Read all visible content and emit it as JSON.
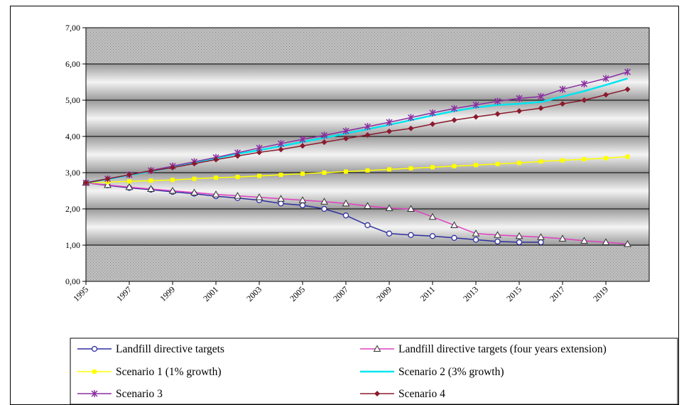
{
  "chart_data": {
    "type": "line",
    "title": "",
    "xlabel": "",
    "ylabel": "",
    "ylim": [
      0,
      7
    ],
    "y_ticks": [
      "0,00",
      "1,00",
      "2,00",
      "3,00",
      "4,00",
      "5,00",
      "6,00",
      "7,00"
    ],
    "x_ticks": [
      "1995",
      "1997",
      "1999",
      "2001",
      "2003",
      "2005",
      "2007",
      "2009",
      "2011",
      "2013",
      "2015",
      "2017",
      "2019"
    ],
    "x_range": [
      1995,
      2021
    ],
    "grid": true,
    "legend_position": "bottom",
    "series": [
      {
        "name": "Landfill directive targets",
        "color": "#2f2fa0",
        "marker": "circle",
        "x": [
          1995,
          1996,
          1997,
          1998,
          1999,
          2000,
          2001,
          2002,
          2003,
          2004,
          2005,
          2006,
          2007,
          2008,
          2009,
          2010,
          2011,
          2012,
          2013,
          2014,
          2015,
          2016
        ],
        "values": [
          2.72,
          2.65,
          2.58,
          2.53,
          2.47,
          2.42,
          2.35,
          2.3,
          2.24,
          2.15,
          2.1,
          2.0,
          1.82,
          1.55,
          1.32,
          1.28,
          1.25,
          1.2,
          1.15,
          1.1,
          1.08,
          1.08
        ]
      },
      {
        "name": "Landfill directive targets (four years extension)",
        "color": "#e040c0",
        "marker": "triangle",
        "x": [
          1995,
          1996,
          1997,
          1998,
          1999,
          2000,
          2001,
          2002,
          2003,
          2004,
          2005,
          2006,
          2007,
          2008,
          2009,
          2010,
          2011,
          2012,
          2013,
          2014,
          2015,
          2016,
          2017,
          2018,
          2019,
          2020
        ],
        "values": [
          2.72,
          2.66,
          2.6,
          2.55,
          2.5,
          2.45,
          2.4,
          2.36,
          2.32,
          2.28,
          2.24,
          2.2,
          2.15,
          2.08,
          2.02,
          2.0,
          1.78,
          1.55,
          1.32,
          1.28,
          1.25,
          1.22,
          1.18,
          1.12,
          1.08,
          1.03
        ]
      },
      {
        "name": "Scenario 1 (1% growth)",
        "color": "#ffff00",
        "marker": "square",
        "x": [
          1995,
          1996,
          1997,
          1998,
          1999,
          2000,
          2001,
          2002,
          2003,
          2004,
          2005,
          2006,
          2007,
          2008,
          2009,
          2010,
          2011,
          2012,
          2013,
          2014,
          2015,
          2016,
          2017,
          2018,
          2019,
          2020
        ],
        "values": [
          2.72,
          2.74,
          2.76,
          2.78,
          2.8,
          2.83,
          2.86,
          2.88,
          2.91,
          2.94,
          2.97,
          3.0,
          3.03,
          3.06,
          3.09,
          3.12,
          3.15,
          3.18,
          3.21,
          3.24,
          3.27,
          3.31,
          3.34,
          3.37,
          3.4,
          3.44
        ]
      },
      {
        "name": "Scenario 2 (3% growth)",
        "color": "#00e5f0",
        "marker": "none",
        "x": [
          1995,
          1996,
          1997,
          1998,
          1999,
          2000,
          2001,
          2002,
          2003,
          2004,
          2005,
          2006,
          2007,
          2008,
          2009,
          2010,
          2011,
          2012,
          2013,
          2014,
          2015,
          2016,
          2017,
          2018,
          2019,
          2020
        ],
        "values": [
          2.72,
          2.82,
          2.93,
          3.04,
          3.15,
          3.27,
          3.4,
          3.52,
          3.62,
          3.73,
          3.85,
          3.96,
          4.08,
          4.2,
          4.32,
          4.45,
          4.58,
          4.7,
          4.8,
          4.87,
          4.9,
          4.95,
          5.1,
          5.25,
          5.42,
          5.6
        ]
      },
      {
        "name": "Scenario 3",
        "color": "#8a2ea0",
        "marker": "star",
        "x": [
          1995,
          1996,
          1997,
          1998,
          1999,
          2000,
          2001,
          2002,
          2003,
          2004,
          2005,
          2006,
          2007,
          2008,
          2009,
          2010,
          2011,
          2012,
          2013,
          2014,
          2015,
          2016,
          2017,
          2018,
          2019,
          2020
        ],
        "values": [
          2.72,
          2.83,
          2.94,
          3.06,
          3.18,
          3.3,
          3.42,
          3.55,
          3.68,
          3.8,
          3.92,
          4.03,
          4.15,
          4.27,
          4.39,
          4.52,
          4.65,
          4.77,
          4.87,
          4.97,
          5.05,
          5.1,
          5.3,
          5.45,
          5.6,
          5.78
        ]
      },
      {
        "name": "Scenario 4",
        "color": "#8b1a2e",
        "marker": "diamond",
        "x": [
          1995,
          1996,
          1997,
          1998,
          1999,
          2000,
          2001,
          2002,
          2003,
          2004,
          2005,
          2006,
          2007,
          2008,
          2009,
          2010,
          2011,
          2012,
          2013,
          2014,
          2015,
          2016,
          2017,
          2018,
          2019,
          2020
        ],
        "values": [
          2.72,
          2.83,
          2.94,
          3.05,
          3.14,
          3.25,
          3.36,
          3.46,
          3.56,
          3.64,
          3.74,
          3.84,
          3.94,
          4.04,
          4.14,
          4.22,
          4.34,
          4.45,
          4.54,
          4.62,
          4.7,
          4.78,
          4.9,
          5.0,
          5.15,
          5.3
        ]
      }
    ]
  }
}
